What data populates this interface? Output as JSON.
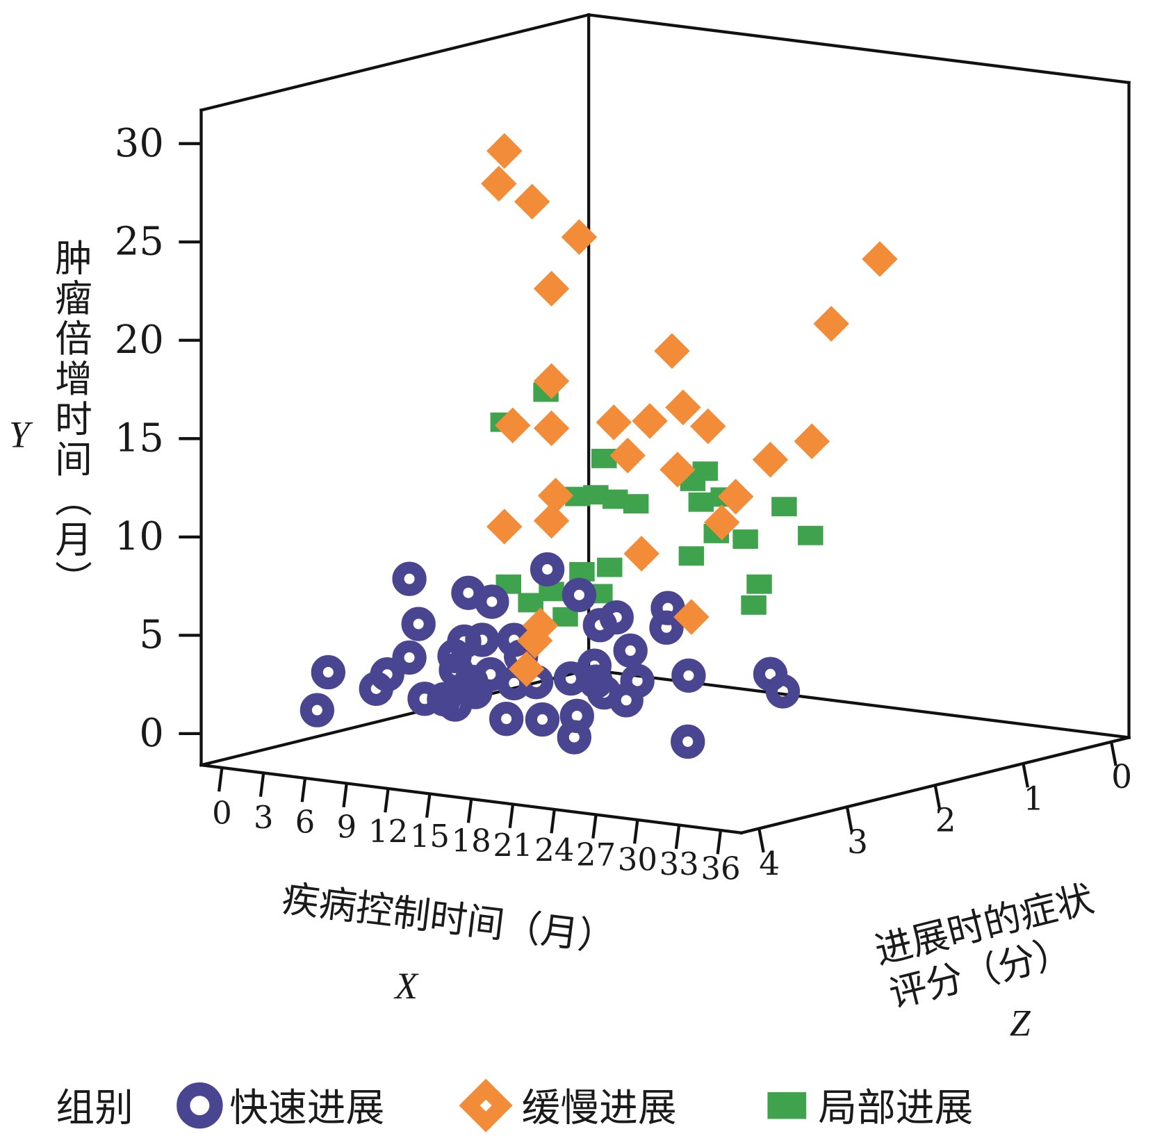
{
  "chart_data": {
    "type": "scatter",
    "dimensions": 3,
    "xlabel": "疾病控制时间（月）",
    "xvar": "X",
    "ylabel": "肿瘤倍增时间（月）",
    "yvar": "Y",
    "zlabel_line1": "进展时的症状",
    "zlabel_line2": "评分（分）",
    "zvar": "Z",
    "xlim": [
      -1.5,
      37.5
    ],
    "ylim": [
      -1.6,
      31.7
    ],
    "zlim": [
      -0.2,
      4.2
    ],
    "xticks": [
      0,
      3,
      6,
      9,
      12,
      15,
      18,
      21,
      24,
      27,
      30,
      33,
      36
    ],
    "yticks": [
      0,
      5,
      10,
      15,
      20,
      25,
      30
    ],
    "zticks": [
      0,
      1,
      2,
      3,
      4
    ],
    "legend_title": "组别",
    "legend_position": "bottom",
    "colors": {
      "rapid": "#4a4590",
      "slow": "#f28c38",
      "local": "#3fa34d"
    },
    "series": [
      {
        "key": "local",
        "name": "局部进展",
        "marker": "square",
        "points": [
          [
            9.4,
            15.9,
            2
          ],
          [
            6.3,
            14.1,
            2
          ],
          [
            13.6,
            12.9,
            2
          ],
          [
            20.9,
            12.9,
            2
          ],
          [
            20.0,
            12.3,
            2
          ],
          [
            11.7,
            10.8,
            2
          ],
          [
            13.0,
            11.0,
            2
          ],
          [
            14.4,
            10.9,
            2
          ],
          [
            15.9,
            10.8,
            2
          ],
          [
            22.2,
            11.7,
            2
          ],
          [
            20.6,
            11.3,
            2
          ],
          [
            26.6,
            11.6,
            2
          ],
          [
            21.7,
            9.8,
            2
          ],
          [
            23.8,
            9.7,
            2
          ],
          [
            28.5,
            10.3,
            2
          ],
          [
            19.9,
            8.5,
            2
          ],
          [
            14.0,
            7.4,
            2
          ],
          [
            12.0,
            7.0,
            2
          ],
          [
            6.7,
            5.9,
            2
          ],
          [
            8.3,
            5.1,
            2
          ],
          [
            9.8,
            5.8,
            2
          ],
          [
            13.3,
            6.0,
            2
          ],
          [
            10.8,
            4.6,
            2
          ],
          [
            24.8,
            7.5,
            2
          ],
          [
            24.4,
            6.4,
            2
          ]
        ]
      },
      {
        "key": "rapid",
        "name": "快速进展",
        "marker": "ring",
        "points": [
          [
            5.9,
            7.2,
            3
          ],
          [
            3.8,
            5.2,
            2
          ],
          [
            5.5,
            4.9,
            2
          ],
          [
            9.5,
            6.9,
            2
          ],
          [
            11.8,
            5.8,
            2
          ],
          [
            0.2,
            3.3,
            2
          ],
          [
            18.2,
            5.7,
            2
          ],
          [
            14.5,
            4.9,
            2
          ],
          [
            13.3,
            4.4,
            2
          ],
          [
            18.1,
            4.7,
            2
          ],
          [
            3.5,
            2.7,
            2
          ],
          [
            4.8,
            2.9,
            2
          ],
          [
            2.8,
            1.9,
            2
          ],
          [
            7.1,
            3.1,
            2
          ],
          [
            5.9,
            3.2,
            3
          ],
          [
            15.5,
            3.3,
            2
          ],
          [
            12.9,
            2.3,
            2
          ],
          [
            6.4,
            3.6,
            4
          ],
          [
            5.6,
            1.6,
            4
          ],
          [
            3.5,
            1.4,
            3
          ],
          [
            4.3,
            2.2,
            3
          ],
          [
            2.9,
            1.2,
            2
          ],
          [
            4.0,
            0.7,
            2
          ],
          [
            5.4,
            1.2,
            2
          ],
          [
            7.1,
            0.9,
            2
          ],
          [
            8.7,
            1.1,
            2
          ],
          [
            11.2,
            1.5,
            2
          ],
          [
            13.0,
            1.5,
            2
          ],
          [
            16.0,
            1.8,
            2
          ],
          [
            19.7,
            2.4,
            2
          ],
          [
            25.6,
            3.0,
            2
          ],
          [
            26.5,
            2.2,
            2
          ],
          [
            7.0,
            1.2,
            3
          ],
          [
            9.2,
            1.1,
            3
          ],
          [
            8.4,
            1.3,
            3
          ],
          [
            4.3,
            0.2,
            2
          ],
          [
            12.9,
            0.7,
            3
          ],
          [
            15.5,
            0.9,
            3
          ],
          [
            17.8,
            0.2,
            3
          ],
          [
            18.0,
            1.3,
            3
          ],
          [
            13.6,
            1.0,
            2
          ],
          [
            15.2,
            0.75,
            2
          ],
          [
            26.0,
            0.7,
            3
          ],
          [
            7.6,
            2.3,
            2
          ]
        ]
      },
      {
        "key": "slow",
        "name": "缓慢进展",
        "marker": "diamond",
        "points": [
          [
            6.4,
            27.9,
            2
          ],
          [
            6.0,
            26.2,
            2
          ],
          [
            8.4,
            25.5,
            2
          ],
          [
            11.8,
            24.0,
            2
          ],
          [
            9.8,
            21.2,
            2
          ],
          [
            33.5,
            24.8,
            2
          ],
          [
            30.0,
            21.2,
            2
          ],
          [
            18.5,
            18.8,
            2
          ],
          [
            9.8,
            16.5,
            2
          ],
          [
            7.0,
            14.0,
            2
          ],
          [
            9.8,
            14.1,
            2
          ],
          [
            14.3,
            14.8,
            2
          ],
          [
            16.9,
            15.1,
            2
          ],
          [
            19.3,
            16.0,
            2
          ],
          [
            21.1,
            15.2,
            2
          ],
          [
            15.3,
            13.2,
            2
          ],
          [
            18.9,
            12.8,
            2
          ],
          [
            25.6,
            13.9,
            2
          ],
          [
            28.6,
            15.1,
            2
          ],
          [
            10.1,
            10.7,
            2
          ],
          [
            9.8,
            9.4,
            2
          ],
          [
            6.4,
            8.8,
            2
          ],
          [
            23.1,
            11.8,
            2
          ],
          [
            22.1,
            10.4,
            2
          ],
          [
            16.3,
            8.3,
            2
          ],
          [
            19.9,
            5.4,
            2
          ],
          [
            9.0,
            4.0,
            2
          ],
          [
            8.6,
            3.2,
            2
          ],
          [
            8.0,
            1.7,
            2
          ]
        ]
      }
    ]
  }
}
